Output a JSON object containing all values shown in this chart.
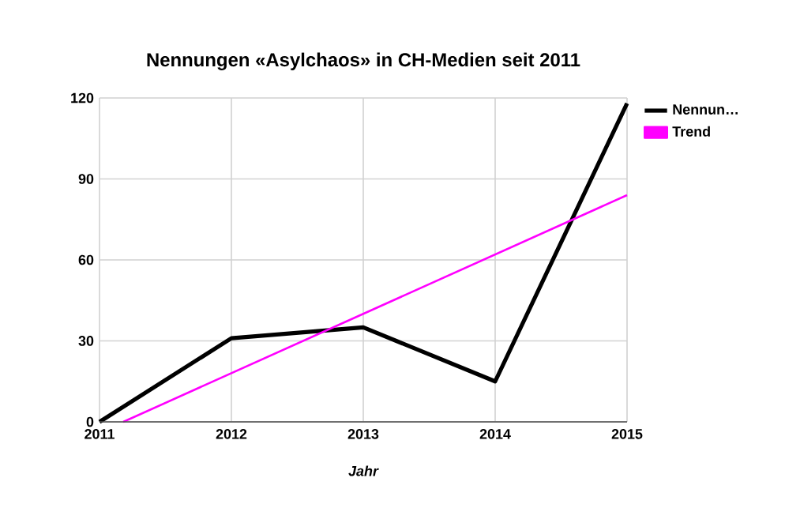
{
  "chart_data": {
    "type": "line",
    "title": "Nennungen «Asylchaos» in CH-Medien seit 2011",
    "xlabel": "Jahr",
    "x": [
      2011,
      2012,
      2013,
      2014,
      2015
    ],
    "series": [
      {
        "name": "Nennun…",
        "color": "#000000",
        "values": [
          0,
          31,
          35,
          15,
          118
        ]
      },
      {
        "name": "Trend",
        "color": "#ff00ff",
        "x": [
          2011.18,
          2015
        ],
        "values": [
          0,
          84
        ]
      }
    ],
    "xlim": [
      2011,
      2015
    ],
    "ylim": [
      0,
      120
    ],
    "xticks": [
      2011,
      2012,
      2013,
      2014,
      2015
    ],
    "yticks": [
      0,
      30,
      60,
      90,
      120
    ],
    "grid": true,
    "legend": "top right",
    "marker": "none",
    "line_style": "solid"
  }
}
